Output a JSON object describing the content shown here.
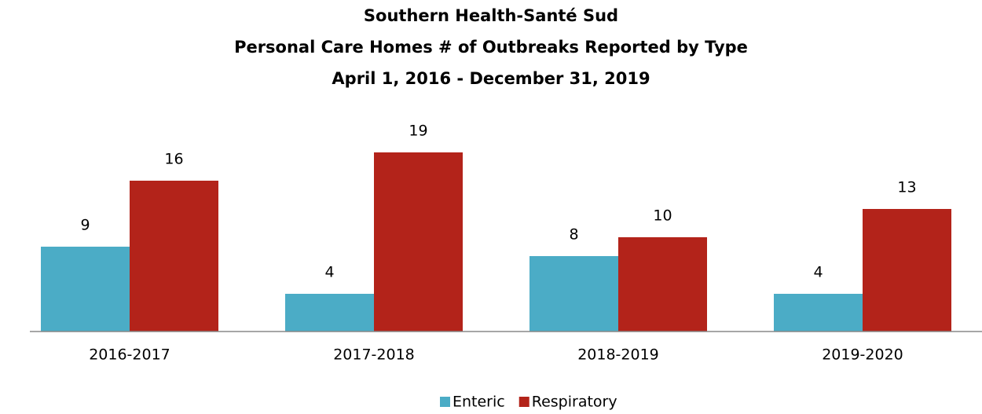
{
  "chart_data": {
    "type": "bar",
    "title": [
      "Southern Health-Santé Sud",
      "Personal Care Homes # of Outbreaks Reported by Type",
      "April 1, 2016 - December 31, 2019"
    ],
    "categories": [
      "2016-2017",
      "2017-2018",
      "2018-2019",
      "2019-2020"
    ],
    "series": [
      {
        "name": "Enteric",
        "color": "#4bacc6",
        "values": [
          9,
          4,
          8,
          4
        ]
      },
      {
        "name": "Respiratory",
        "color": "#b3231a",
        "values": [
          16,
          19,
          10,
          13
        ]
      }
    ],
    "legend": "bottom"
  }
}
